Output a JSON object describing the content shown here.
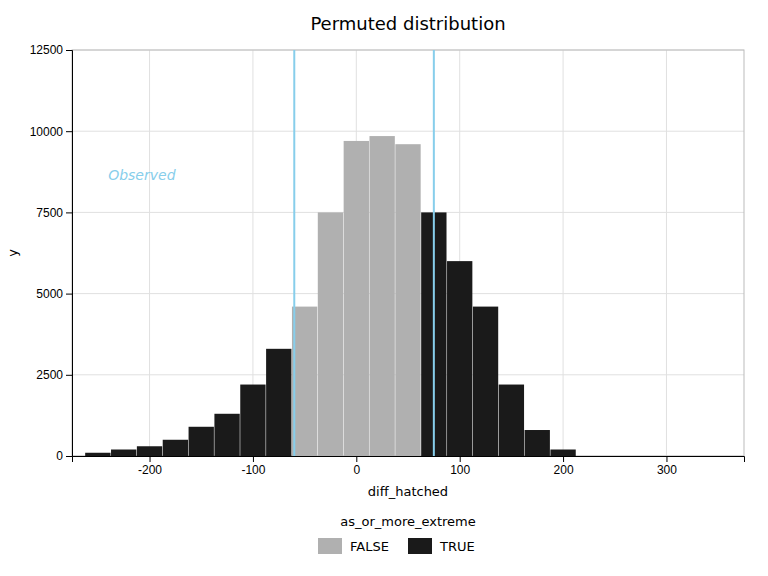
{
  "chart_data": {
    "type": "bar",
    "title": "Permuted distribution",
    "x_label": "diff_hatched",
    "y_label": "y",
    "x": [
      -250,
      -225,
      -200,
      -175,
      -150,
      -125,
      -100,
      -75,
      -50,
      -25,
      0,
      25,
      50,
      75,
      100,
      125,
      150,
      175,
      200
    ],
    "series": [
      {
        "name": "FALSE",
        "color": "#b0b0b0",
        "values": [
          null,
          null,
          null,
          null,
          null,
          null,
          null,
          null,
          4600,
          7500,
          9700,
          9850,
          9600,
          null,
          null,
          null,
          null,
          null,
          null
        ]
      },
      {
        "name": "TRUE",
        "color": "#1a1a1a",
        "values": [
          100,
          200,
          300,
          500,
          900,
          1300,
          2200,
          3300,
          null,
          null,
          null,
          null,
          null,
          7500,
          6000,
          4600,
          2200,
          800,
          200
        ]
      }
    ],
    "legend_title": "as_or_more_extreme",
    "legend": "bottom",
    "vlines": [
      {
        "x": -60,
        "color": "#87CEEB"
      },
      {
        "x": 75,
        "color": "#87CEEB"
      }
    ],
    "annotations": [
      {
        "text": "Observed",
        "x": -240,
        "y": 8500,
        "color": "#87CEEB"
      }
    ],
    "xlim": [
      -275,
      375
    ],
    "xticks": [
      -200,
      -100,
      0,
      100,
      200,
      300
    ],
    "ylim": [
      0,
      12500
    ],
    "yticks": [
      0,
      2500,
      5000,
      7500,
      10000,
      12500
    ],
    "grid": true
  }
}
